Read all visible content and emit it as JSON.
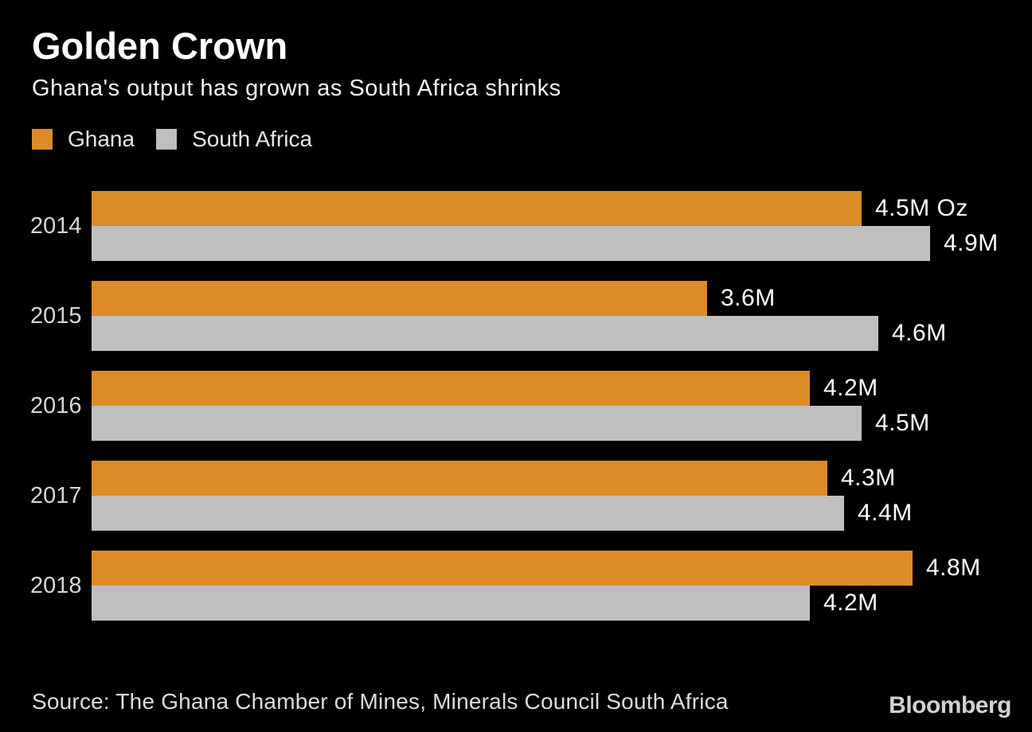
{
  "header": {
    "title": "Golden Crown",
    "subtitle": "Ghana's output has grown as South Africa shrinks"
  },
  "legend": [
    {
      "label": "Ghana",
      "color": "#DB8B28"
    },
    {
      "label": "South Africa",
      "color": "#BFBFBF"
    }
  ],
  "footer": {
    "source": "Source: The Ghana Chamber of Mines, Minerals Council South Africa",
    "brand": "Bloomberg"
  },
  "colors": {
    "background": "#000000",
    "ghana_orange": "#DB8B28",
    "south_africa_gray": "#BFBFBF",
    "title_text": "#FFFFFF",
    "value_text": "#FFFFFF",
    "axis_text": "#D6D6D6"
  },
  "chart_data": {
    "type": "bar",
    "orientation": "horizontal",
    "title": "Golden Crown",
    "subtitle": "Ghana's output has grown as South Africa shrinks",
    "unit": "millions of ounces (M Oz)",
    "categories": [
      "2014",
      "2015",
      "2016",
      "2017",
      "2018"
    ],
    "series": [
      {
        "name": "Ghana",
        "color": "#DB8B28",
        "values": [
          4.5,
          3.6,
          4.2,
          4.3,
          4.8
        ],
        "labels": [
          "4.5M Oz",
          "3.6M",
          "4.2M",
          "4.3M",
          "4.8M"
        ]
      },
      {
        "name": "South Africa",
        "color": "#BFBFBF",
        "values": [
          4.9,
          4.6,
          4.5,
          4.4,
          4.2
        ],
        "labels": [
          "4.9M",
          "4.6M",
          "4.5M",
          "4.4M",
          "4.2M"
        ]
      }
    ],
    "xlim": [
      0,
      5.5
    ],
    "grid": false,
    "axes_hidden": true,
    "value_labels": "outside-end",
    "legend_position": "top-left",
    "source": "Source: The Ghana Chamber of Mines, Minerals Council South Africa"
  }
}
